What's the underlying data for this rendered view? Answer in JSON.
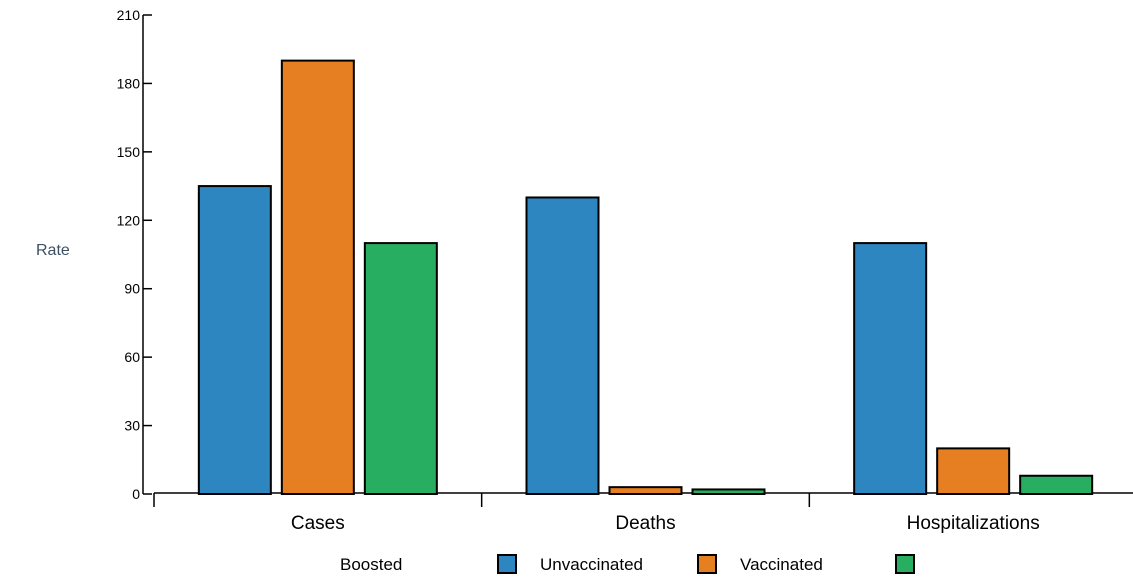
{
  "chart_data": {
    "type": "bar",
    "ylabel": "Rate",
    "xlabel": "",
    "ylim": [
      0,
      210
    ],
    "yticks": [
      0,
      30,
      60,
      90,
      120,
      150,
      180,
      210
    ],
    "categories": [
      "Cases",
      "Deaths",
      "Hospitalizations"
    ],
    "series": [
      {
        "values": [
          135,
          130,
          110
        ],
        "color": "#2e86c1"
      },
      {
        "values": [
          190,
          3,
          20
        ],
        "color": "#e67e22"
      },
      {
        "values": [
          110,
          2,
          8
        ],
        "color": "#27ae60"
      }
    ],
    "legend": {
      "placement": "bottom",
      "labels": [
        "Boosted",
        "Unvaccinated",
        "Vaccinated"
      ]
    },
    "grid": false
  }
}
